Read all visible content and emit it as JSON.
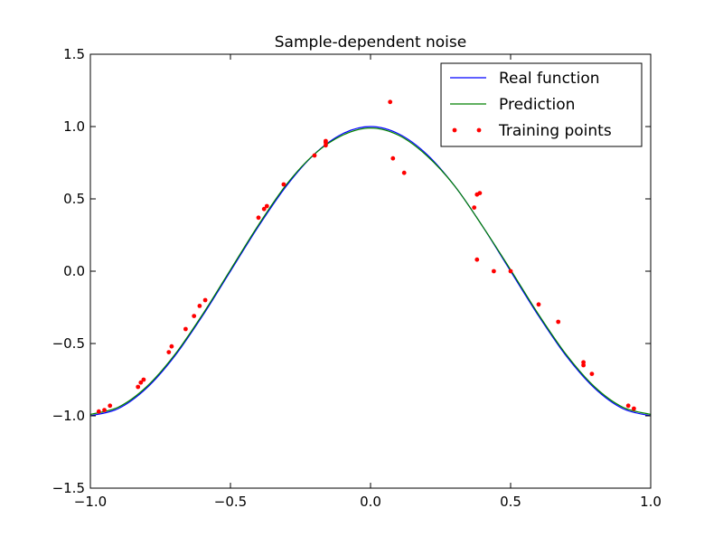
{
  "chart_data": {
    "type": "line",
    "title": "Sample-dependent noise",
    "xlabel": "",
    "ylabel": "",
    "xlim": [
      -1.0,
      1.0
    ],
    "ylim": [
      -1.5,
      1.5
    ],
    "x_ticks": [
      -1.0,
      -0.5,
      0.0,
      0.5,
      1.0
    ],
    "x_tick_labels": [
      "−1.0",
      "−0.5",
      "0.0",
      "0.5",
      "1.0"
    ],
    "y_ticks": [
      -1.5,
      -1.0,
      -0.5,
      0.0,
      0.5,
      1.0,
      1.5
    ],
    "y_tick_labels": [
      "−1.5",
      "−1.0",
      "−0.5",
      "0.0",
      "0.5",
      "1.0",
      "1.5"
    ],
    "grid": false,
    "legend_position": "top-right",
    "series": [
      {
        "name": "Real function",
        "kind": "line",
        "color": "#0000ff",
        "x": [
          -1.0,
          -0.9,
          -0.8,
          -0.7,
          -0.6,
          -0.5,
          -0.4,
          -0.3,
          -0.2,
          -0.1,
          0.0,
          0.1,
          0.2,
          0.3,
          0.4,
          0.5,
          0.6,
          0.7,
          0.8,
          0.9,
          1.0
        ],
        "y": [
          -1.0,
          -0.95,
          -0.81,
          -0.59,
          -0.31,
          0.0,
          0.31,
          0.59,
          0.81,
          0.95,
          1.0,
          0.95,
          0.81,
          0.59,
          0.31,
          0.0,
          -0.31,
          -0.59,
          -0.81,
          -0.95,
          -1.0
        ]
      },
      {
        "name": "Prediction",
        "kind": "line",
        "color": "#008000",
        "x": [
          -1.0,
          -0.9,
          -0.8,
          -0.7,
          -0.6,
          -0.5,
          -0.4,
          -0.3,
          -0.2,
          -0.1,
          0.0,
          0.1,
          0.2,
          0.3,
          0.4,
          0.5,
          0.6,
          0.7,
          0.8,
          0.9,
          1.0
        ],
        "y": [
          -0.99,
          -0.94,
          -0.8,
          -0.58,
          -0.3,
          0.01,
          0.32,
          0.6,
          0.81,
          0.94,
          0.99,
          0.94,
          0.8,
          0.59,
          0.31,
          0.01,
          -0.3,
          -0.58,
          -0.8,
          -0.94,
          -0.99
        ]
      },
      {
        "name": "Training points",
        "kind": "scatter",
        "color": "#ff0000",
        "x": [
          -0.97,
          -0.95,
          -0.93,
          -0.83,
          -0.82,
          -0.81,
          -0.72,
          -0.71,
          -0.66,
          -0.63,
          -0.61,
          -0.59,
          -0.4,
          -0.38,
          -0.37,
          -0.31,
          -0.2,
          -0.16,
          -0.16,
          -0.16,
          0.07,
          0.08,
          0.12,
          0.37,
          0.38,
          0.38,
          0.39,
          0.44,
          0.5,
          0.6,
          0.67,
          0.76,
          0.76,
          0.79,
          0.92,
          0.94
        ],
        "y": [
          -0.97,
          -0.96,
          -0.93,
          -0.8,
          -0.77,
          -0.75,
          -0.56,
          -0.52,
          -0.4,
          -0.31,
          -0.24,
          -0.2,
          0.37,
          0.43,
          0.45,
          0.6,
          0.8,
          0.87,
          0.89,
          0.9,
          1.17,
          0.78,
          0.68,
          0.44,
          0.53,
          0.08,
          0.54,
          0.0,
          0.0,
          -0.23,
          -0.35,
          -0.63,
          -0.65,
          -0.71,
          -0.93,
          -0.95
        ]
      }
    ]
  }
}
